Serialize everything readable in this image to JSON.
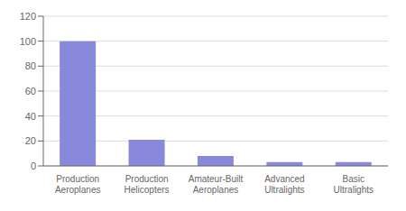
{
  "chart_data": {
    "type": "bar",
    "categories": [
      "Production\nAeroplanes",
      "Production\nHelicopters",
      "Amateur-Built\nAeroplanes",
      "Advanced\nUltralights",
      "Basic\nUltralights"
    ],
    "values": [
      100,
      21,
      8,
      3,
      3
    ],
    "color": "#8888dd",
    "ylim": [
      0,
      120
    ],
    "yticks": [
      0,
      20,
      40,
      60,
      80,
      100,
      120
    ],
    "grid": true
  }
}
